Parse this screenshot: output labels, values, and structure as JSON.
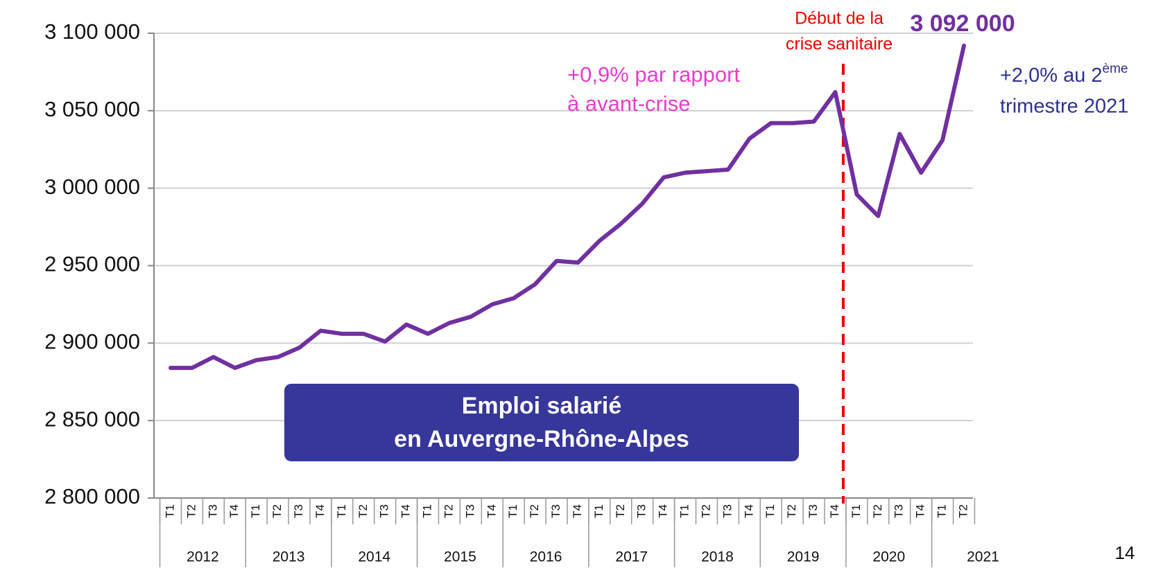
{
  "chart_data": {
    "type": "line",
    "categories": [
      "T1",
      "T2",
      "T3",
      "T4",
      "T1",
      "T2",
      "T3",
      "T4",
      "T1",
      "T2",
      "T3",
      "T4",
      "T1",
      "T2",
      "T3",
      "T4",
      "T1",
      "T2",
      "T3",
      "T4",
      "T1",
      "T2",
      "T3",
      "T4",
      "T1",
      "T2",
      "T3",
      "T4",
      "T1",
      "T2",
      "T3",
      "T4",
      "T1",
      "T2",
      "T3",
      "T4",
      "T1",
      "T2"
    ],
    "years": [
      "2012",
      "2013",
      "2014",
      "2015",
      "2016",
      "2017",
      "2018",
      "2019",
      "2020",
      "2021"
    ],
    "series": [
      {
        "color": "#7030a0",
        "values": [
          2884000,
          2884000,
          2891000,
          2884000,
          2889000,
          2891000,
          2897000,
          2908000,
          2906000,
          2906000,
          2901000,
          2912000,
          2906000,
          2913000,
          2917000,
          2925000,
          2929000,
          2938000,
          2953000,
          2952000,
          2966000,
          2977000,
          2990000,
          3007000,
          3010000,
          3011000,
          3012000,
          3032000,
          3042000,
          3042000,
          3043000,
          3062000,
          2996000,
          2982000,
          3035000,
          3010000,
          3031000,
          3092000
        ],
        "value_labels": [
          null,
          null,
          null,
          null,
          null,
          null,
          null,
          null,
          null,
          null,
          null,
          null,
          null,
          null,
          null,
          null,
          null,
          null,
          null,
          null,
          null,
          null,
          null,
          null,
          null,
          null,
          null,
          null,
          null,
          null,
          null,
          null,
          null,
          null,
          null,
          null,
          null,
          "3 092 000"
        ]
      }
    ],
    "ylim": [
      2800000,
      3100000
    ],
    "yticks": [
      {
        "value": 2800000,
        "label": "2 800 000"
      },
      {
        "value": 2850000,
        "label": "2 850 000"
      },
      {
        "value": 2900000,
        "label": "2 900 000"
      },
      {
        "value": 2950000,
        "label": "2 950 000"
      },
      {
        "value": 3000000,
        "label": "3 000 000"
      },
      {
        "value": 3050000,
        "label": "3 050 000"
      },
      {
        "value": 3100000,
        "label": "3 100 000"
      }
    ],
    "grid": true,
    "annotations": {
      "crisis": [
        "Début de la",
        "crise sanitaire"
      ],
      "vs_precrisis": [
        "+0,9% par rapport",
        "à avant-crise"
      ],
      "growth": {
        "line1": "+2,0% au 2",
        "sup": "ème",
        "line2": "trimestre  2021"
      },
      "box": [
        "Emploi salarié",
        "en Auvergne-Rhône-Alpes"
      ]
    },
    "page_number": "14"
  }
}
